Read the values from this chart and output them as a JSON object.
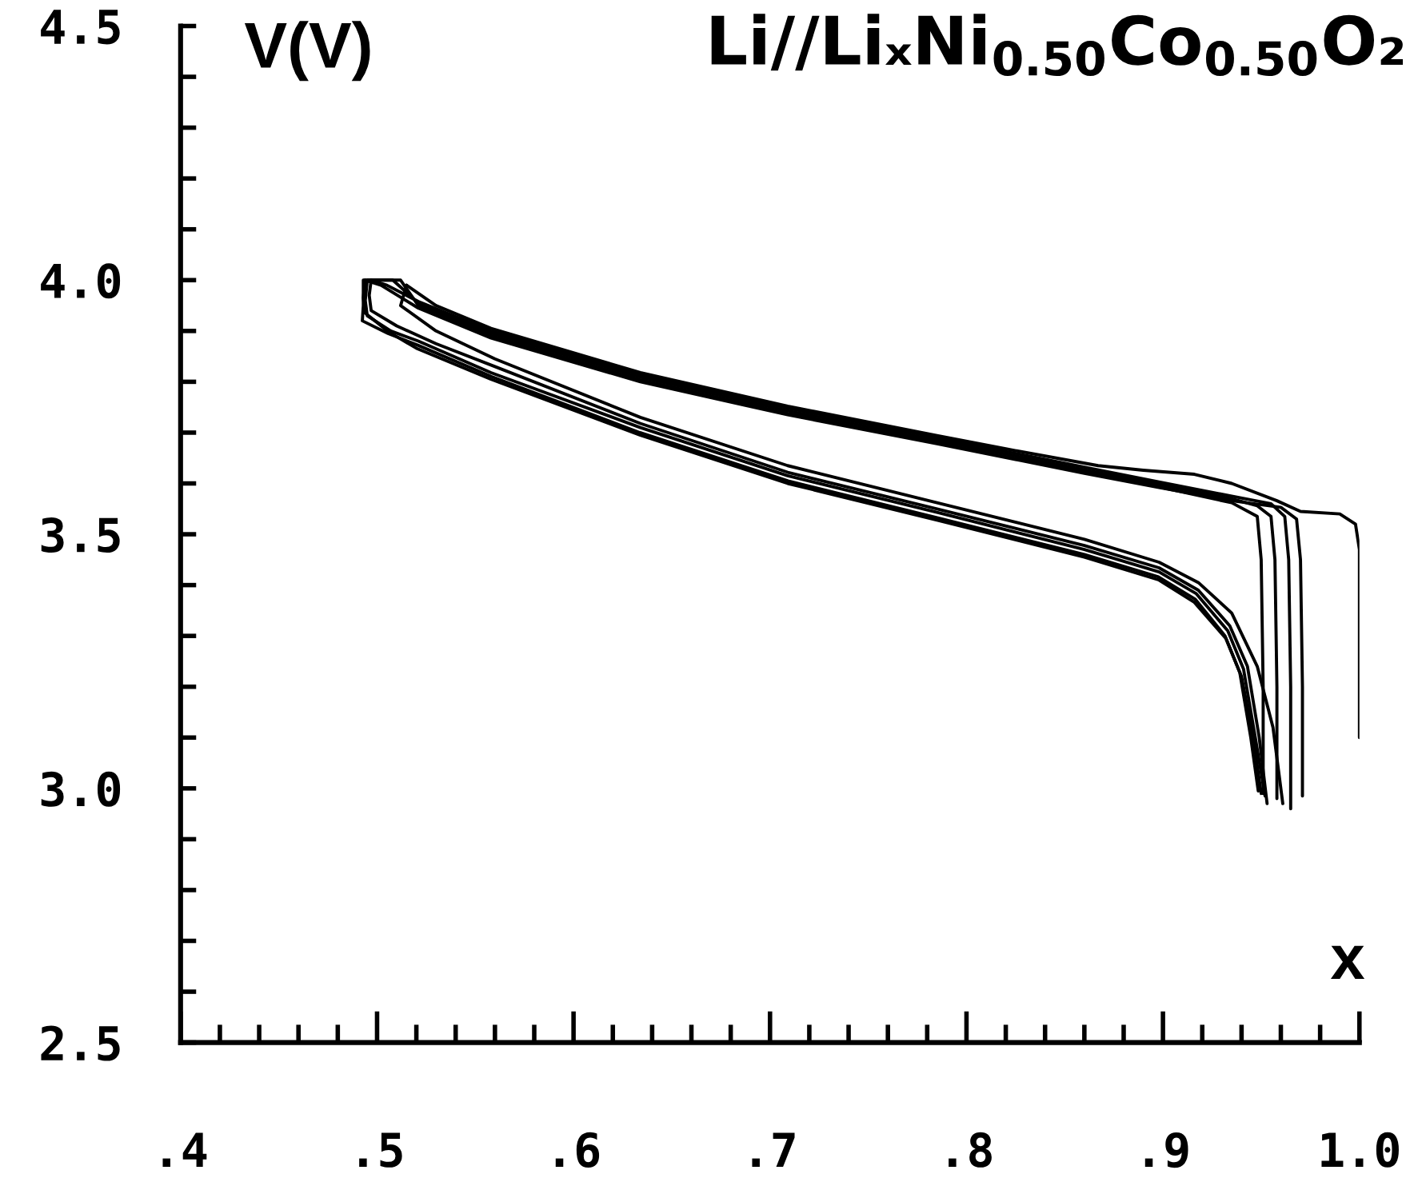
{
  "chart_data": {
    "type": "line",
    "title": "Li//LiₓNi$_{0.50}$Co$_{0.50}$O₂",
    "xlabel": "x",
    "ylabel": "V(V)",
    "xlim": [
      0.4,
      1.0
    ],
    "ylim": [
      2.5,
      4.5
    ],
    "xticks": [
      {
        "value": 0.4,
        "label": ".4"
      },
      {
        "value": 0.42,
        "label": null
      },
      {
        "value": 0.44,
        "label": null
      },
      {
        "value": 0.46,
        "label": null
      },
      {
        "value": 0.48,
        "label": null
      },
      {
        "value": 0.5,
        "label": ".5"
      },
      {
        "value": 0.52,
        "label": null
      },
      {
        "value": 0.54,
        "label": null
      },
      {
        "value": 0.56,
        "label": null
      },
      {
        "value": 0.58,
        "label": null
      },
      {
        "value": 0.6,
        "label": ".6"
      },
      {
        "value": 0.62,
        "label": null
      },
      {
        "value": 0.64,
        "label": null
      },
      {
        "value": 0.66,
        "label": null
      },
      {
        "value": 0.68,
        "label": null
      },
      {
        "value": 0.7,
        "label": ".7"
      },
      {
        "value": 0.72,
        "label": null
      },
      {
        "value": 0.74,
        "label": null
      },
      {
        "value": 0.76,
        "label": null
      },
      {
        "value": 0.78,
        "label": null
      },
      {
        "value": 0.8,
        "label": ".8"
      },
      {
        "value": 0.82,
        "label": null
      },
      {
        "value": 0.84,
        "label": null
      },
      {
        "value": 0.86,
        "label": null
      },
      {
        "value": 0.88,
        "label": null
      },
      {
        "value": 0.9,
        "label": ".9"
      },
      {
        "value": 0.92,
        "label": null
      },
      {
        "value": 0.94,
        "label": null
      },
      {
        "value": 0.96,
        "label": null
      },
      {
        "value": 0.98,
        "label": null
      },
      {
        "value": 1.0,
        "label": "1.0"
      }
    ],
    "yticks": [
      2.5,
      {
        "value": 2.6,
        "label": null
      },
      {
        "value": 2.7,
        "label": null
      },
      {
        "value": 2.8,
        "label": null
      },
      {
        "value": 2.9,
        "label": null
      },
      {
        "value": 3.0,
        "label": "3.0"
      },
      {
        "value": 3.1,
        "label": null
      },
      {
        "value": 3.2,
        "label": null
      },
      {
        "value": 3.3,
        "label": null
      },
      {
        "value": 3.4,
        "label": null
      },
      3.5,
      {
        "value": 3.6,
        "label": null
      },
      {
        "value": 3.7,
        "label": null
      },
      {
        "value": 3.8,
        "label": null
      },
      {
        "value": 3.9,
        "label": null
      },
      {
        "value": 4.0,
        "label": "4.0"
      },
      {
        "value": 4.1,
        "label": null
      },
      {
        "value": 4.2,
        "label": null
      },
      {
        "value": 4.3,
        "label": null
      },
      {
        "value": 4.4,
        "label": null
      },
      4.5
    ],
    "series": [
      {
        "color": "#000000",
        "x": [
          1.0,
          1.0,
          1.0,
          0.998,
          0.99,
          0.97,
          0.958,
          0.935,
          0.916,
          0.89,
          0.867,
          0.82,
          0.785,
          0.709,
          0.634,
          0.558,
          0.53,
          0.515
        ],
        "values": [
          3.1,
          3.3,
          3.47,
          3.52,
          3.54,
          3.545,
          3.566,
          3.6,
          3.618,
          3.626,
          3.635,
          3.668,
          3.694,
          3.752,
          3.818,
          3.905,
          3.95,
          3.99
        ]
      },
      {
        "color": "#000000",
        "x": [
          0.515,
          0.512,
          0.53,
          0.56,
          0.634,
          0.709,
          0.785,
          0.86,
          0.898,
          0.918,
          0.935,
          0.948,
          0.956,
          0.961
        ],
        "values": [
          3.99,
          3.95,
          3.9,
          3.845,
          3.73,
          3.635,
          3.562,
          3.49,
          3.445,
          3.405,
          3.345,
          3.24,
          3.12,
          2.97
        ]
      },
      {
        "color": "#000000",
        "x": [
          0.951,
          0.951,
          0.95,
          0.948,
          0.935,
          0.898,
          0.86,
          0.785,
          0.709,
          0.634,
          0.558,
          0.521,
          0.512,
          0.493,
          0.493,
          0.4925,
          0.5056,
          0.5207,
          0.5584,
          0.6338,
          0.7092,
          0.7846,
          0.86,
          0.8977,
          0.9165,
          0.9316,
          0.9391,
          0.9447,
          0.9485
        ],
        "values": [
          2.99,
          3.2,
          3.45,
          3.535,
          3.562,
          3.593,
          3.622,
          3.68,
          3.738,
          3.804,
          3.891,
          3.95,
          4.0,
          4.0,
          3.95,
          3.92,
          3.895,
          3.872,
          3.81,
          3.7,
          3.605,
          3.533,
          3.46,
          3.416,
          3.372,
          3.3,
          3.228,
          3.1,
          2.995
        ]
      },
      {
        "color": "#000000",
        "x": [
          0.958,
          0.958,
          0.957,
          0.955,
          0.948,
          0.935,
          0.898,
          0.86,
          0.785,
          0.709,
          0.634,
          0.558,
          0.521,
          0.508,
          0.495,
          0.494,
          0.495,
          0.507,
          0.521,
          0.558,
          0.634,
          0.709,
          0.785,
          0.86,
          0.898,
          0.917,
          0.933,
          0.941,
          0.947,
          0.952
        ],
        "values": [
          2.98,
          3.2,
          3.45,
          3.535,
          3.556,
          3.57,
          3.598,
          3.627,
          3.685,
          3.743,
          3.809,
          3.896,
          3.955,
          4.0,
          4.0,
          3.96,
          3.93,
          3.9,
          3.88,
          3.818,
          3.71,
          3.615,
          3.543,
          3.47,
          3.426,
          3.383,
          3.31,
          3.235,
          3.1,
          2.985
        ]
      },
      {
        "color": "#000000",
        "x": [
          0.965,
          0.965,
          0.964,
          0.962,
          0.955,
          0.935,
          0.898,
          0.86,
          0.785,
          0.709,
          0.634,
          0.558,
          0.521,
          0.505,
          0.497,
          0.496,
          0.497,
          0.51,
          0.53,
          0.56,
          0.634,
          0.709,
          0.785,
          0.86,
          0.898,
          0.918,
          0.934,
          0.943,
          0.949,
          0.953
        ],
        "values": [
          2.96,
          3.2,
          3.45,
          3.535,
          3.56,
          3.575,
          3.603,
          3.632,
          3.69,
          3.748,
          3.814,
          3.9,
          3.958,
          3.99,
          4.0,
          3.97,
          3.94,
          3.91,
          3.875,
          3.83,
          3.718,
          3.622,
          3.55,
          3.478,
          3.434,
          3.39,
          3.32,
          3.24,
          3.1,
          2.97
        ]
      },
      {
        "color": "#000000",
        "x": [
          0.971,
          0.971,
          0.97,
          0.968,
          0.96,
          0.935,
          0.898,
          0.86,
          0.785,
          0.709,
          0.634,
          0.558,
          0.521,
          0.502,
          0.494,
          0.493,
          0.494,
          0.506,
          0.52,
          0.558,
          0.634,
          0.709,
          0.785,
          0.86,
          0.898,
          0.916,
          0.932,
          0.94,
          0.946,
          0.95
        ],
        "values": [
          2.985,
          3.2,
          3.45,
          3.53,
          3.553,
          3.566,
          3.592,
          3.62,
          3.678,
          3.735,
          3.8,
          3.886,
          3.945,
          3.99,
          4.0,
          3.965,
          3.935,
          3.898,
          3.866,
          3.805,
          3.695,
          3.6,
          3.528,
          3.455,
          3.41,
          3.366,
          3.295,
          3.22,
          3.1,
          2.99
        ]
      }
    ]
  }
}
